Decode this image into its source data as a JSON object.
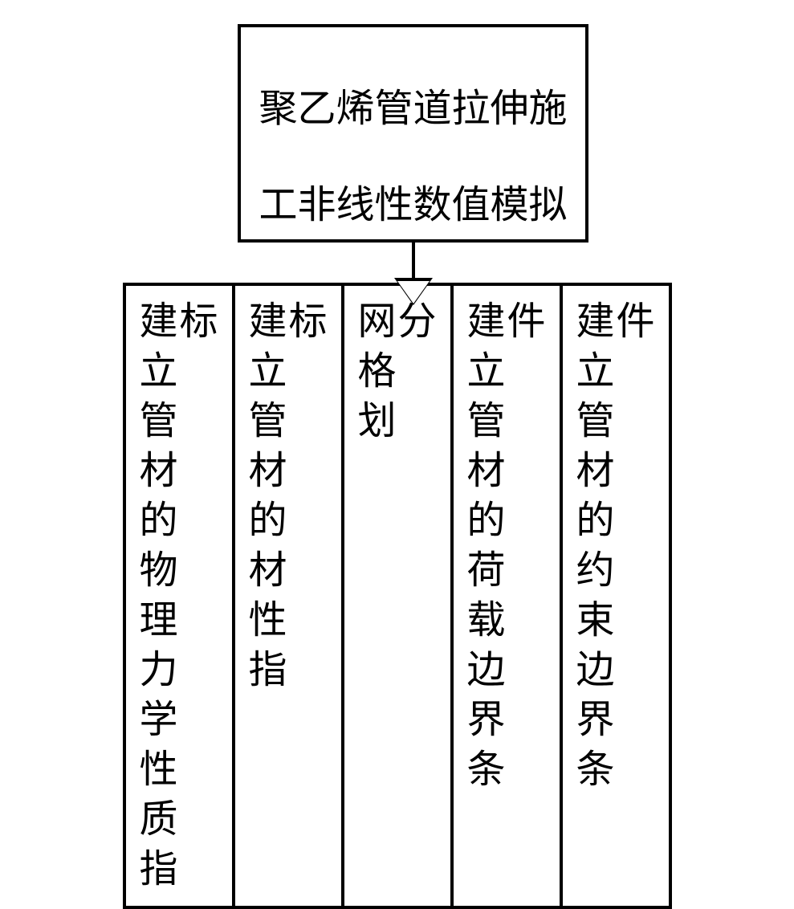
{
  "diagram": {
    "type": "flowchart",
    "background_color": "#ffffff",
    "border_color": "#000000",
    "border_width": 4,
    "text_color": "#000000",
    "font_family": "SimSun",
    "font_size": 48,
    "top_box": {
      "line1": "聚乙烯管道拉伸施",
      "line2": "工非线性数值模拟"
    },
    "arrow": {
      "style": "hollow-triangle",
      "line_length": 50,
      "head_width": 48,
      "head_height": 34
    },
    "bottom_boxes": [
      {
        "columns": [
          [
            "建",
            "立",
            "管",
            "材",
            "的",
            "物",
            "理",
            "力",
            "学",
            "性",
            "质",
            "指",
            "标"
          ],
          [
            "",
            "",
            "",
            "",
            "",
            "",
            "",
            "",
            "",
            "",
            "",
            "",
            ""
          ]
        ],
        "cols": [
          "建立管材的物理力学性质指",
          "标"
        ]
      },
      {
        "cols": [
          "建立管材的材性指",
          "标"
        ]
      },
      {
        "cols": [
          "网格划",
          "分"
        ]
      },
      {
        "cols": [
          "建立管材的荷载边界条",
          "件"
        ]
      },
      {
        "cols": [
          "建立管材的约束边界条",
          "件"
        ]
      }
    ]
  }
}
